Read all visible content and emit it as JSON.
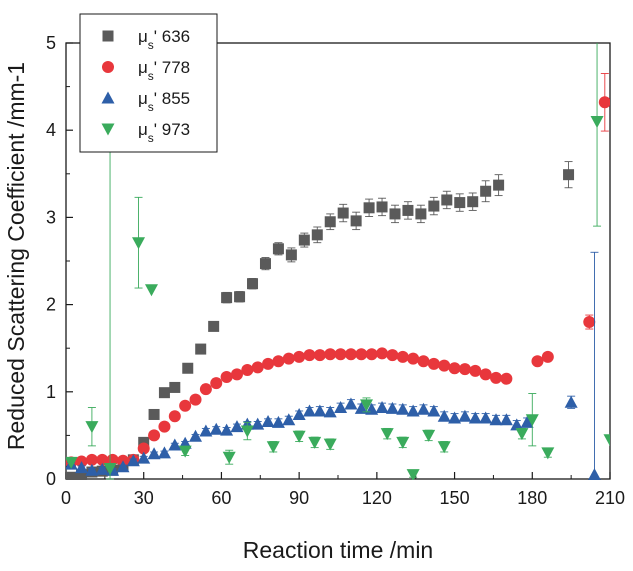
{
  "chart_data": {
    "type": "scatter",
    "title": "",
    "xlabel": "Reaction time /min",
    "ylabel": "Reduced Scattering Coefficient /mm-1",
    "xlim": [
      0,
      210
    ],
    "ylim": [
      0,
      5
    ],
    "x_ticks": [
      "0",
      "30",
      "60",
      "90",
      "120",
      "150",
      "180",
      "210"
    ],
    "y_ticks": [
      "0",
      "1",
      "2",
      "3",
      "4",
      "5"
    ],
    "grid": false,
    "legend_position": "top-left",
    "series": [
      {
        "name": "636",
        "legend_prefix": "μ",
        "legend_sub": "s",
        "legend_suffix": "'",
        "marker": "square",
        "color": "#5a5a5a",
        "points": [
          {
            "x": 2,
            "y": 0.02,
            "err": 0.02
          },
          {
            "x": 6,
            "y": 0.05,
            "err": 0.02
          },
          {
            "x": 10,
            "y": 0.08,
            "err": 0.02
          },
          {
            "x": 14,
            "y": 0.09,
            "err": 0.02
          },
          {
            "x": 18,
            "y": 0.1,
            "err": 0.03
          },
          {
            "x": 22,
            "y": 0.15,
            "err": 0.03
          },
          {
            "x": 26,
            "y": 0.22,
            "err": 0.03
          },
          {
            "x": 30,
            "y": 0.42,
            "err": 0.03
          },
          {
            "x": 34,
            "y": 0.74,
            "err": 0.03
          },
          {
            "x": 38,
            "y": 0.99,
            "err": 0.03
          },
          {
            "x": 42,
            "y": 1.05,
            "err": 0.03
          },
          {
            "x": 47,
            "y": 1.27,
            "err": 0.04
          },
          {
            "x": 52,
            "y": 1.49,
            "err": 0.05
          },
          {
            "x": 57,
            "y": 1.75,
            "err": 0.05
          },
          {
            "x": 62,
            "y": 2.08,
            "err": 0.06
          },
          {
            "x": 67,
            "y": 2.09,
            "err": 0.06
          },
          {
            "x": 72,
            "y": 2.24,
            "err": 0.06
          },
          {
            "x": 77,
            "y": 2.47,
            "err": 0.07
          },
          {
            "x": 82,
            "y": 2.64,
            "err": 0.07
          },
          {
            "x": 87,
            "y": 2.57,
            "err": 0.08
          },
          {
            "x": 92,
            "y": 2.74,
            "err": 0.08
          },
          {
            "x": 97,
            "y": 2.8,
            "err": 0.09
          },
          {
            "x": 102,
            "y": 2.95,
            "err": 0.09
          },
          {
            "x": 107,
            "y": 3.05,
            "err": 0.1
          },
          {
            "x": 112,
            "y": 2.96,
            "err": 0.1
          },
          {
            "x": 117,
            "y": 3.11,
            "err": 0.1
          },
          {
            "x": 122,
            "y": 3.12,
            "err": 0.1
          },
          {
            "x": 127,
            "y": 3.04,
            "err": 0.1
          },
          {
            "x": 132,
            "y": 3.08,
            "err": 0.1
          },
          {
            "x": 137,
            "y": 3.04,
            "err": 0.1
          },
          {
            "x": 142,
            "y": 3.13,
            "err": 0.1
          },
          {
            "x": 147,
            "y": 3.2,
            "err": 0.1
          },
          {
            "x": 152,
            "y": 3.17,
            "err": 0.1
          },
          {
            "x": 157,
            "y": 3.18,
            "err": 0.1
          },
          {
            "x": 162,
            "y": 3.3,
            "err": 0.12
          },
          {
            "x": 167,
            "y": 3.37,
            "err": 0.12
          },
          {
            "x": 194,
            "y": 3.49,
            "err": 0.15
          }
        ]
      },
      {
        "name": "778",
        "legend_prefix": "μ",
        "legend_sub": "s",
        "legend_suffix": "'",
        "marker": "circle",
        "color": "#e8373c",
        "points": [
          {
            "x": 2,
            "y": 0.19,
            "err": 0.02
          },
          {
            "x": 6,
            "y": 0.2,
            "err": 0.02
          },
          {
            "x": 10,
            "y": 0.22,
            "err": 0.02
          },
          {
            "x": 14,
            "y": 0.22,
            "err": 0.02
          },
          {
            "x": 18,
            "y": 0.22,
            "err": 0.02
          },
          {
            "x": 22,
            "y": 0.21,
            "err": 0.02
          },
          {
            "x": 26,
            "y": 0.22,
            "err": 0.02
          },
          {
            "x": 30,
            "y": 0.35,
            "err": 0.02
          },
          {
            "x": 34,
            "y": 0.5,
            "err": 0.02
          },
          {
            "x": 38,
            "y": 0.6,
            "err": 0.02
          },
          {
            "x": 42,
            "y": 0.72,
            "err": 0.02
          },
          {
            "x": 46,
            "y": 0.84,
            "err": 0.02
          },
          {
            "x": 50,
            "y": 0.91,
            "err": 0.02
          },
          {
            "x": 54,
            "y": 1.03,
            "err": 0.02
          },
          {
            "x": 58,
            "y": 1.1,
            "err": 0.02
          },
          {
            "x": 62,
            "y": 1.17,
            "err": 0.02
          },
          {
            "x": 66,
            "y": 1.2,
            "err": 0.02
          },
          {
            "x": 70,
            "y": 1.25,
            "err": 0.02
          },
          {
            "x": 74,
            "y": 1.28,
            "err": 0.02
          },
          {
            "x": 78,
            "y": 1.32,
            "err": 0.02
          },
          {
            "x": 82,
            "y": 1.35,
            "err": 0.02
          },
          {
            "x": 86,
            "y": 1.38,
            "err": 0.02
          },
          {
            "x": 90,
            "y": 1.4,
            "err": 0.02
          },
          {
            "x": 94,
            "y": 1.42,
            "err": 0.02
          },
          {
            "x": 98,
            "y": 1.42,
            "err": 0.02
          },
          {
            "x": 102,
            "y": 1.43,
            "err": 0.02
          },
          {
            "x": 106,
            "y": 1.43,
            "err": 0.02
          },
          {
            "x": 110,
            "y": 1.43,
            "err": 0.02
          },
          {
            "x": 114,
            "y": 1.43,
            "err": 0.02
          },
          {
            "x": 118,
            "y": 1.43,
            "err": 0.02
          },
          {
            "x": 122,
            "y": 1.44,
            "err": 0.02
          },
          {
            "x": 126,
            "y": 1.42,
            "err": 0.02
          },
          {
            "x": 130,
            "y": 1.4,
            "err": 0.02
          },
          {
            "x": 134,
            "y": 1.38,
            "err": 0.02
          },
          {
            "x": 138,
            "y": 1.35,
            "err": 0.02
          },
          {
            "x": 142,
            "y": 1.32,
            "err": 0.02
          },
          {
            "x": 146,
            "y": 1.3,
            "err": 0.02
          },
          {
            "x": 150,
            "y": 1.27,
            "err": 0.02
          },
          {
            "x": 154,
            "y": 1.26,
            "err": 0.02
          },
          {
            "x": 158,
            "y": 1.24,
            "err": 0.02
          },
          {
            "x": 162,
            "y": 1.2,
            "err": 0.02
          },
          {
            "x": 166,
            "y": 1.16,
            "err": 0.02
          },
          {
            "x": 170,
            "y": 1.15,
            "err": 0.02
          },
          {
            "x": 182,
            "y": 1.35,
            "err": 0.02
          },
          {
            "x": 186,
            "y": 1.4,
            "err": 0.02
          },
          {
            "x": 202,
            "y": 1.8,
            "err": 0.08
          },
          {
            "x": 208,
            "y": 4.32,
            "err": 0.33
          }
        ]
      },
      {
        "name": "855",
        "legend_prefix": "μ",
        "legend_sub": "s",
        "legend_suffix": "'",
        "marker": "triangle-up",
        "color": "#2e5fa8",
        "points": [
          {
            "x": 2,
            "y": 0.17,
            "err": 0.02
          },
          {
            "x": 6,
            "y": 0.13,
            "err": 0.02
          },
          {
            "x": 10,
            "y": 0.1,
            "err": 0.02
          },
          {
            "x": 14,
            "y": 0.11,
            "err": 0.02
          },
          {
            "x": 18,
            "y": 0.1,
            "err": 0.02
          },
          {
            "x": 22,
            "y": 0.14,
            "err": 0.02
          },
          {
            "x": 26,
            "y": 0.21,
            "err": 0.02
          },
          {
            "x": 30,
            "y": 0.24,
            "err": 0.02
          },
          {
            "x": 34,
            "y": 0.29,
            "err": 0.02
          },
          {
            "x": 38,
            "y": 0.3,
            "err": 0.02
          },
          {
            "x": 42,
            "y": 0.39,
            "err": 0.02
          },
          {
            "x": 46,
            "y": 0.41,
            "err": 0.02
          },
          {
            "x": 50,
            "y": 0.49,
            "err": 0.02
          },
          {
            "x": 54,
            "y": 0.55,
            "err": 0.03
          },
          {
            "x": 58,
            "y": 0.57,
            "err": 0.03
          },
          {
            "x": 62,
            "y": 0.56,
            "err": 0.03
          },
          {
            "x": 66,
            "y": 0.6,
            "err": 0.03
          },
          {
            "x": 70,
            "y": 0.63,
            "err": 0.03
          },
          {
            "x": 74,
            "y": 0.63,
            "err": 0.03
          },
          {
            "x": 78,
            "y": 0.66,
            "err": 0.03
          },
          {
            "x": 82,
            "y": 0.65,
            "err": 0.04
          },
          {
            "x": 86,
            "y": 0.68,
            "err": 0.04
          },
          {
            "x": 90,
            "y": 0.74,
            "err": 0.04
          },
          {
            "x": 94,
            "y": 0.78,
            "err": 0.04
          },
          {
            "x": 98,
            "y": 0.78,
            "err": 0.05
          },
          {
            "x": 102,
            "y": 0.77,
            "err": 0.05
          },
          {
            "x": 106,
            "y": 0.82,
            "err": 0.05
          },
          {
            "x": 110,
            "y": 0.86,
            "err": 0.05
          },
          {
            "x": 114,
            "y": 0.81,
            "err": 0.05
          },
          {
            "x": 118,
            "y": 0.8,
            "err": 0.05
          },
          {
            "x": 122,
            "y": 0.82,
            "err": 0.05
          },
          {
            "x": 126,
            "y": 0.81,
            "err": 0.05
          },
          {
            "x": 130,
            "y": 0.8,
            "err": 0.05
          },
          {
            "x": 134,
            "y": 0.78,
            "err": 0.05
          },
          {
            "x": 138,
            "y": 0.8,
            "err": 0.05
          },
          {
            "x": 142,
            "y": 0.78,
            "err": 0.05
          },
          {
            "x": 146,
            "y": 0.72,
            "err": 0.05
          },
          {
            "x": 150,
            "y": 0.7,
            "err": 0.05
          },
          {
            "x": 154,
            "y": 0.72,
            "err": 0.05
          },
          {
            "x": 158,
            "y": 0.7,
            "err": 0.05
          },
          {
            "x": 162,
            "y": 0.7,
            "err": 0.05
          },
          {
            "x": 166,
            "y": 0.68,
            "err": 0.05
          },
          {
            "x": 170,
            "y": 0.68,
            "err": 0.05
          },
          {
            "x": 174,
            "y": 0.62,
            "err": 0.05
          },
          {
            "x": 178,
            "y": 0.65,
            "err": 0.05
          },
          {
            "x": 195,
            "y": 0.88,
            "err": 0.07
          },
          {
            "x": 204,
            "y": 0.05,
            "err": 2.55
          }
        ]
      },
      {
        "name": "973",
        "legend_prefix": "μ",
        "legend_sub": "s",
        "legend_suffix": "'",
        "marker": "triangle-down",
        "color": "#3aab5c",
        "points": [
          {
            "x": 2,
            "y": 0.19,
            "err": 0.0
          },
          {
            "x": 10,
            "y": 0.6,
            "err": 0.22
          },
          {
            "x": 17,
            "y": 0.12,
            "err": 5.0
          },
          {
            "x": 28,
            "y": 2.71,
            "err": 0.52
          },
          {
            "x": 33,
            "y": 2.17,
            "err": 0.0
          },
          {
            "x": 46,
            "y": 0.32,
            "err": 0.05
          },
          {
            "x": 63,
            "y": 0.25,
            "err": 0.08
          },
          {
            "x": 70,
            "y": 0.55,
            "err": 0.1
          },
          {
            "x": 80,
            "y": 0.37,
            "err": 0.06
          },
          {
            "x": 90,
            "y": 0.49,
            "err": 0.06
          },
          {
            "x": 96,
            "y": 0.42,
            "err": 0.06
          },
          {
            "x": 102,
            "y": 0.4,
            "err": 0.06
          },
          {
            "x": 116,
            "y": 0.85,
            "err": 0.08
          },
          {
            "x": 124,
            "y": 0.52,
            "err": 0.06
          },
          {
            "x": 130,
            "y": 0.42,
            "err": 0.06
          },
          {
            "x": 134,
            "y": 0.05,
            "err": 0.03
          },
          {
            "x": 140,
            "y": 0.5,
            "err": 0.06
          },
          {
            "x": 146,
            "y": 0.37,
            "err": 0.06
          },
          {
            "x": 176,
            "y": 0.52,
            "err": 0.06
          },
          {
            "x": 180,
            "y": 0.68,
            "err": 0.3
          },
          {
            "x": 186,
            "y": 0.3,
            "err": 0.05
          },
          {
            "x": 205,
            "y": 4.1,
            "err": 1.2
          },
          {
            "x": 210,
            "y": 0.45,
            "err": 0.0
          }
        ]
      }
    ]
  }
}
